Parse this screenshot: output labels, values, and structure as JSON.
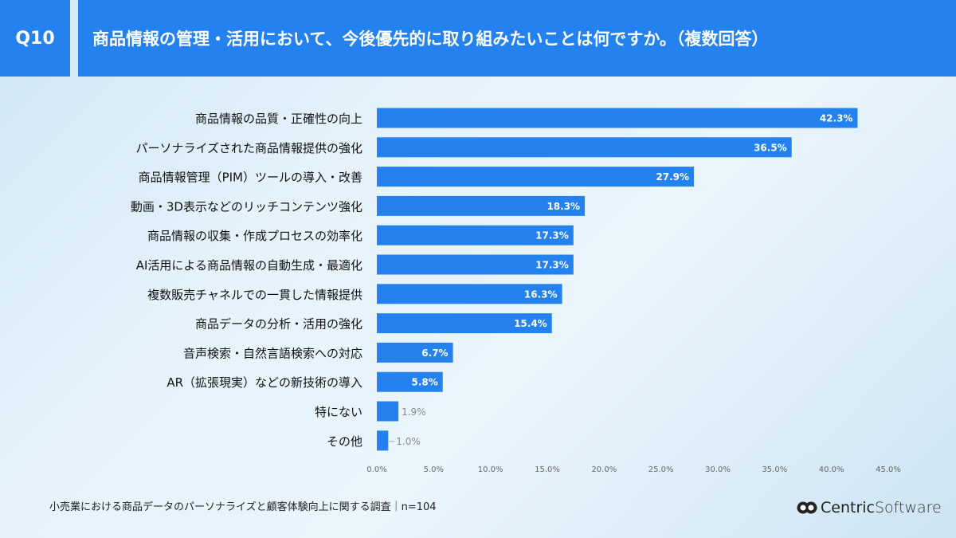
{
  "header": {
    "question": "Q10",
    "title": "商品情報の管理・活用において、今後優先的に取り組みたいことは何ですか。（複数回答）"
  },
  "footer": {
    "note": "小売業における商品データのパーソナライズと顧客体験向上に関する調査｜n=104",
    "logo_main": "Centric",
    "logo_sub": "Software"
  },
  "colors": {
    "bar": "#2381f0",
    "header": "#2381f0"
  },
  "chart_data": {
    "type": "bar",
    "orientation": "horizontal",
    "categories": [
      "商品情報の品質・正確性の向上",
      "パーソナライズされた商品情報提供の強化",
      "商品情報管理（PIM）ツールの導入・改善",
      "動画・3D表示などのリッチコンテンツ強化",
      "商品情報の収集・作成プロセスの効率化",
      "AI活用による商品情報の自動生成・最適化",
      "複数販売チャネルでの一貫した情報提供",
      "商品データの分析・活用の強化",
      "音声検索・自然言語検索への対応",
      "AR（拡張現実）などの新技術の導入",
      "特にない",
      "その他"
    ],
    "values": [
      42.3,
      36.5,
      27.9,
      18.3,
      17.3,
      17.3,
      16.3,
      15.4,
      6.7,
      5.8,
      1.9,
      1.0
    ],
    "labels": [
      "42.3%",
      "36.5%",
      "27.9%",
      "18.3%",
      "17.3%",
      "17.3%",
      "16.3%",
      "15.4%",
      "6.7%",
      "5.8%",
      "1.9%",
      "1.0%"
    ],
    "xlim": [
      0,
      45
    ],
    "xticks": [
      "0.0%",
      "5.0%",
      "10.0%",
      "15.0%",
      "20.0%",
      "25.0%",
      "30.0%",
      "35.0%",
      "40.0%",
      "45.0%"
    ],
    "grid": false,
    "legend": "none"
  }
}
